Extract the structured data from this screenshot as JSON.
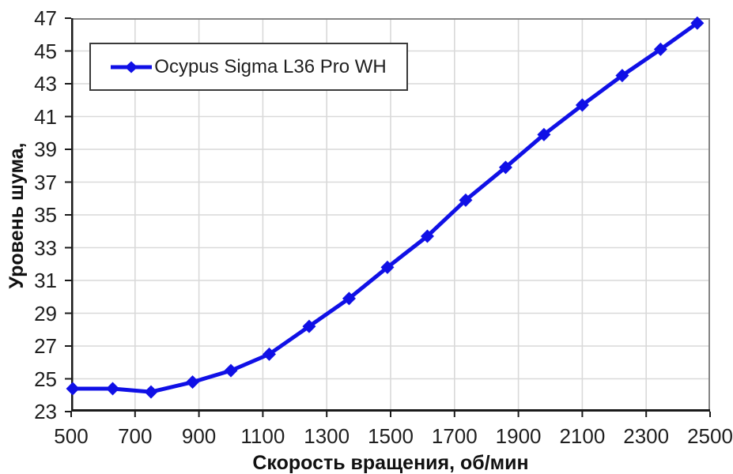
{
  "chart_data": {
    "type": "line",
    "title": "",
    "xlabel": "Скорость вращения, об/мин",
    "ylabel": "Уровень шума,",
    "xlim": [
      500,
      2500
    ],
    "x_ticks": [
      500,
      700,
      900,
      1100,
      1300,
      1500,
      1700,
      1900,
      2100,
      2300,
      2500
    ],
    "ylim": [
      23,
      47
    ],
    "y_ticks": [
      23,
      25,
      27,
      29,
      31,
      33,
      35,
      37,
      39,
      41,
      43,
      45,
      47
    ],
    "grid": true,
    "legend_position": "top-left",
    "series": [
      {
        "name": "Ocypus Sigma L36 Pro WH",
        "color": "#1010e6",
        "marker": "diamond",
        "x": [
          505,
          630,
          750,
          880,
          1000,
          1120,
          1245,
          1370,
          1490,
          1615,
          1735,
          1860,
          1980,
          2100,
          2225,
          2345,
          2460
        ],
        "y": [
          24.4,
          24.4,
          24.2,
          24.8,
          25.5,
          26.5,
          28.2,
          29.9,
          31.8,
          33.7,
          35.9,
          37.9,
          39.9,
          41.7,
          43.5,
          45.1,
          46.7
        ]
      }
    ]
  },
  "colors": {
    "background": "#ffffff",
    "grid": "#d9d9d9",
    "frame": "#858585",
    "axis": "#1a1a1a",
    "tick_text": "#1f1f1f",
    "legend_border": "#3a3a3a",
    "series_blue": "#1010e6"
  }
}
